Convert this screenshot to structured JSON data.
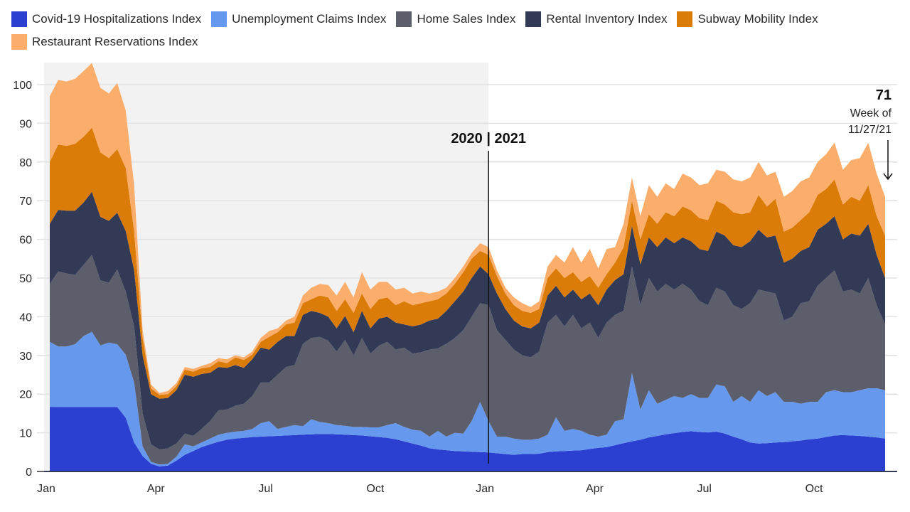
{
  "chart_data": {
    "type": "area",
    "stacked": true,
    "title": "",
    "xlabel": "",
    "ylabel": "",
    "ylim": [
      0,
      105
    ],
    "yticks": [
      0,
      10,
      20,
      30,
      40,
      50,
      60,
      70,
      80,
      90,
      100
    ],
    "grid": true,
    "legend_position": "top-left",
    "x_tick_labels": [
      "Jan",
      "Apr",
      "Jul",
      "Oct",
      "Jan",
      "Apr",
      "Jul",
      "Oct"
    ],
    "x_tick_weeks": [
      0,
      13,
      26,
      39,
      52,
      65,
      78,
      91
    ],
    "x_unit": "week index (weekly, Jan 2020 – week of 11/27/21)",
    "shaded_region": {
      "label": "2020",
      "from_week": 0,
      "to_week": 52
    },
    "divider": {
      "week": 52,
      "label": "2020 | 2021"
    },
    "end_annotation": {
      "value": "71",
      "line1": "Week of",
      "line2": "11/27/21"
    },
    "series": [
      {
        "name": "Covid-19 Hospitalizations Index",
        "color": "#2b3fd1",
        "values": [
          16.7,
          16.7,
          16.7,
          16.7,
          16.7,
          16.7,
          16.7,
          16.7,
          16.7,
          13.9,
          7.5,
          4.0,
          2.0,
          1.3,
          1.5,
          2.8,
          4.3,
          5.3,
          6.3,
          7.0,
          7.7,
          8.2,
          8.5,
          8.7,
          8.9,
          9.0,
          9.1,
          9.2,
          9.3,
          9.4,
          9.5,
          9.6,
          9.7,
          9.7,
          9.6,
          9.5,
          9.4,
          9.3,
          9.1,
          8.9,
          8.7,
          8.3,
          7.8,
          7.2,
          6.7,
          6.0,
          5.7,
          5.5,
          5.3,
          5.2,
          5.1,
          5.0,
          4.9,
          4.7,
          4.5,
          4.3,
          4.5,
          4.5,
          4.6,
          5.0,
          5.2,
          5.3,
          5.4,
          5.5,
          5.8,
          6.1,
          6.3,
          6.8,
          7.3,
          7.8,
          8.2,
          8.8,
          9.2,
          9.6,
          9.9,
          10.2,
          10.4,
          10.2,
          10.1,
          10.3,
          9.8,
          9.0,
          8.3,
          7.5,
          7.2,
          7.3,
          7.5,
          7.6,
          7.8,
          8.0,
          8.3,
          8.5,
          8.9,
          9.3,
          9.4,
          9.3,
          9.2,
          9.0,
          8.8,
          8.5
        ]
      },
      {
        "name": "Unemployment Claims Index",
        "color": "#6699ee",
        "values": [
          16.8,
          15.6,
          15.6,
          16.2,
          18.3,
          19.4,
          15.9,
          16.6,
          16.2,
          16.3,
          15.5,
          2.5,
          0.5,
          0.5,
          0.5,
          1.0,
          2.7,
          1.2,
          1.2,
          1.5,
          1.8,
          1.8,
          1.8,
          1.8,
          2.1,
          3.5,
          3.9,
          1.8,
          2.2,
          2.6,
          2.2,
          3.9,
          3.1,
          2.8,
          2.4,
          2.3,
          2.1,
          2.2,
          2.3,
          2.5,
          3.3,
          4.2,
          3.7,
          3.6,
          3.8,
          3.0,
          4.8,
          3.5,
          4.7,
          4.6,
          7.9,
          13.0,
          8.1,
          4.3,
          4.5,
          4.2,
          3.7,
          3.7,
          3.9,
          4.5,
          8.8,
          5.2,
          5.6,
          5.0,
          3.7,
          2.9,
          3.2,
          6.2,
          6.2,
          17.7,
          7.8,
          12.2,
          8.3,
          8.9,
          9.6,
          8.8,
          9.6,
          8.8,
          8.9,
          12.2,
          12.2,
          9.0,
          11.2,
          10.5,
          13.8,
          12.2,
          13.0,
          10.4,
          10.2,
          9.5,
          9.7,
          9.5,
          11.6,
          11.7,
          11.1,
          11.2,
          11.8,
          12.5,
          12.7,
          12.5
        ]
      },
      {
        "name": "Home Sales Index",
        "color": "#5c5e6b",
        "values": [
          15.0,
          19.4,
          18.9,
          17.9,
          18.4,
          19.9,
          16.8,
          15.5,
          19.3,
          16.3,
          14.5,
          8.5,
          4.5,
          3.9,
          4.0,
          3.4,
          2.8,
          2.7,
          3.5,
          4.5,
          6.3,
          6.0,
          6.7,
          7.0,
          8.5,
          10.5,
          10.0,
          14.0,
          15.5,
          15.5,
          21.3,
          21.0,
          22.0,
          21.3,
          19.0,
          22.2,
          18.5,
          23.0,
          19.1,
          21.1,
          21.5,
          19.0,
          20.5,
          19.7,
          20.3,
          22.5,
          21.3,
          24.0,
          24.5,
          26.7,
          27.0,
          25.5,
          30.0,
          27.5,
          25.0,
          23.0,
          21.8,
          21.3,
          22.5,
          29.0,
          26.5,
          27.0,
          29.5,
          26.5,
          29.0,
          25.5,
          29.0,
          27.5,
          28.0,
          27.5,
          27.0,
          29.0,
          29.0,
          30.0,
          27.5,
          29.5,
          27.0,
          25.0,
          24.0,
          25.0,
          24.5,
          25.0,
          22.5,
          25.5,
          26.0,
          27.0,
          25.5,
          21.0,
          22.0,
          26.0,
          26.0,
          30.0,
          29.5,
          31.0,
          26.0,
          26.5,
          25.0,
          28.5,
          21.5,
          17.0
        ]
      },
      {
        "name": "Rental Inventory Index",
        "color": "#333a56",
        "values": [
          15.5,
          15.9,
          16.2,
          16.6,
          16.1,
          16.3,
          16.4,
          16.0,
          14.7,
          15.7,
          14.5,
          15.0,
          13.0,
          13.1,
          13.0,
          13.8,
          15.2,
          15.3,
          14.2,
          12.5,
          11.2,
          10.8,
          10.5,
          9.3,
          9.5,
          9.0,
          8.5,
          8.5,
          8.0,
          7.5,
          7.5,
          7.0,
          6.2,
          6.2,
          6.0,
          6.2,
          6.0,
          7.0,
          6.5,
          7.0,
          6.5,
          7.0,
          6.0,
          7.0,
          7.2,
          7.5,
          7.7,
          8.5,
          9.5,
          10.0,
          10.0,
          9.5,
          8.0,
          9.5,
          8.0,
          7.5,
          7.5,
          7.5,
          7.5,
          7.0,
          7.5,
          7.5,
          6.5,
          7.5,
          7.5,
          8.5,
          8.5,
          9.0,
          9.5,
          10.5,
          10.5,
          10.5,
          11.5,
          12.0,
          12.0,
          12.0,
          12.5,
          13.5,
          14.0,
          14.5,
          14.5,
          15.5,
          16.0,
          16.0,
          15.5,
          14.0,
          15.0,
          15.0,
          15.0,
          13.5,
          14.0,
          14.5,
          14.0,
          14.0,
          13.5,
          14.5,
          15.0,
          14.0,
          13.0,
          12.0
        ]
      },
      {
        "name": "Subway Mobility Index",
        "color": "#db7b08",
        "values": [
          16.0,
          16.9,
          16.8,
          17.3,
          17.0,
          16.6,
          16.7,
          16.2,
          16.4,
          16.3,
          10.0,
          4.5,
          1.5,
          1.0,
          1.0,
          1.0,
          1.3,
          1.3,
          1.5,
          1.5,
          1.5,
          1.2,
          2.0,
          2.0,
          1.2,
          1.5,
          3.3,
          2.5,
          3.0,
          3.5,
          3.0,
          3.0,
          4.5,
          5.0,
          4.5,
          4.3,
          5.0,
          4.5,
          5.0,
          5.0,
          5.0,
          4.5,
          6.0,
          5.5,
          5.5,
          5.0,
          5.0,
          4.5,
          4.5,
          5.0,
          5.0,
          4.0,
          5.0,
          4.5,
          4.0,
          4.0,
          4.0,
          4.0,
          3.5,
          4.5,
          4.5,
          5.0,
          4.5,
          4.5,
          4.5,
          4.5,
          4.0,
          4.5,
          7.0,
          6.5,
          6.5,
          6.0,
          6.0,
          6.5,
          7.0,
          8.0,
          8.0,
          8.0,
          8.0,
          8.0,
          8.0,
          8.5,
          8.5,
          7.5,
          9.0,
          8.0,
          9.5,
          8.0,
          8.0,
          8.0,
          9.0,
          9.0,
          9.0,
          9.5,
          9.0,
          9.5,
          9.0,
          10.0,
          10.0,
          11.0
        ]
      },
      {
        "name": "Restaurant Reservations Index",
        "color": "#fbae6b",
        "values": [
          17.0,
          16.7,
          16.6,
          16.8,
          17.0,
          16.7,
          16.7,
          16.7,
          17.1,
          14.8,
          12.0,
          2.0,
          1.0,
          0.5,
          0.8,
          0.8,
          0.7,
          0.7,
          0.6,
          1.0,
          0.8,
          1.0,
          0.5,
          0.7,
          0.8,
          1.0,
          1.5,
          1.0,
          1.0,
          1.5,
          2.0,
          3.0,
          3.0,
          3.2,
          4.0,
          4.5,
          4.0,
          5.5,
          5.0,
          4.5,
          4.0,
          4.0,
          3.5,
          3.0,
          3.0,
          2.0,
          2.0,
          1.5,
          1.5,
          1.5,
          1.5,
          2.0,
          2.0,
          1.5,
          1.5,
          2.0,
          2.0,
          1.5,
          2.0,
          3.0,
          3.5,
          4.0,
          6.5,
          5.0,
          7.0,
          5.0,
          6.5,
          4.0,
          6.0,
          6.0,
          6.0,
          7.5,
          7.0,
          7.5,
          7.0,
          8.5,
          8.5,
          8.5,
          9.5,
          8.0,
          8.5,
          8.5,
          8.5,
          9.0,
          8.5,
          8.0,
          7.0,
          9.0,
          9.5,
          10.0,
          9.0,
          8.5,
          9.0,
          9.5,
          9.0,
          9.5,
          11.0,
          11.0,
          11.0,
          10.0
        ]
      }
    ]
  }
}
